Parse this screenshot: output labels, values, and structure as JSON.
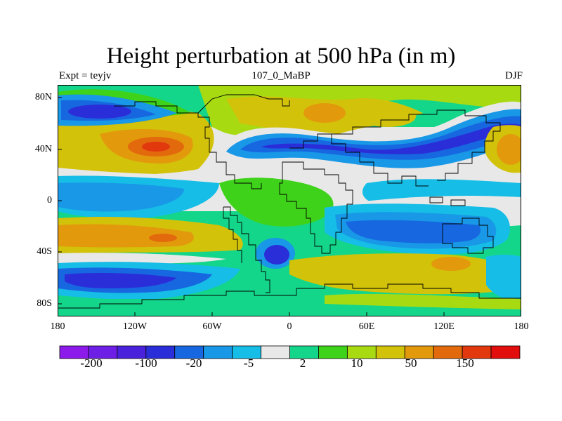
{
  "figure": {
    "title": "Height perturbation at 500 hPa (in m)",
    "left_label": "Expt = teyjv",
    "center_label": "107_0_MaBP",
    "right_label": "DJF"
  },
  "axes": {
    "lat_ticks": [
      "80N",
      "40N",
      "0",
      "40S",
      "80S"
    ],
    "lon_ticks": [
      "180",
      "120W",
      "60W",
      "0",
      "60E",
      "120E",
      "180"
    ]
  },
  "colorbar": {
    "colors": [
      "#8c1aea",
      "#6e1fe6",
      "#4b22dc",
      "#2a2ed8",
      "#1768e0",
      "#1898e6",
      "#16bde6",
      "#e8e8e8",
      "#14d68a",
      "#3fd21a",
      "#a8da12",
      "#d2c20a",
      "#e29a0c",
      "#e26a0c",
      "#e2380e",
      "#e20e0e"
    ],
    "labels": [
      "-200",
      "-100",
      "-20",
      "-5",
      "2",
      "10",
      "50",
      "150"
    ]
  }
}
